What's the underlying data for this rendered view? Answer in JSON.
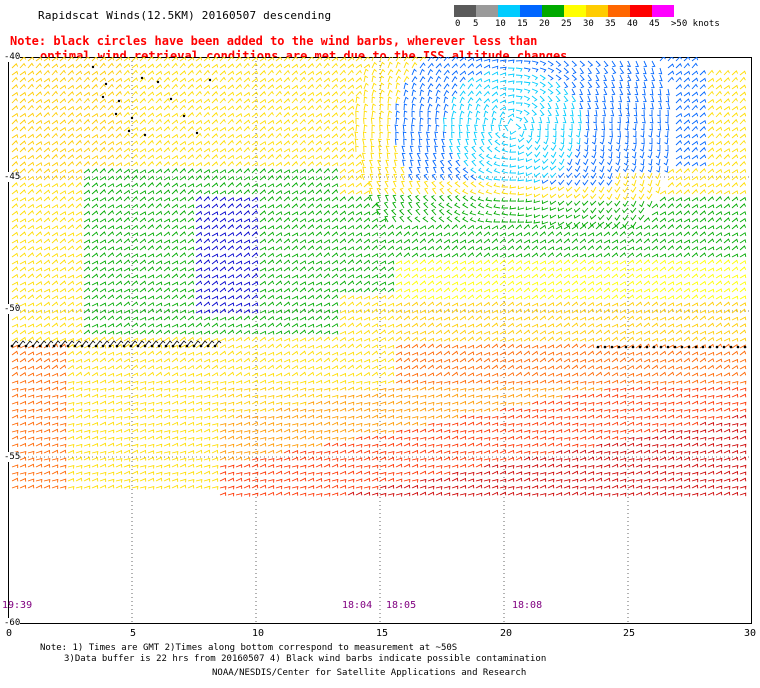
{
  "title": "Rapidscat Winds(12.5KM) 20160507 descending",
  "note_line1": "Note: black circles have been added to the wind barbs, wherever less than",
  "note_line2": "optimal wind retrieval conditions are met due to the ISS altitude changes.",
  "legend": {
    "unit": "knots",
    "labels": [
      "0",
      "5",
      "10",
      "15",
      "20",
      "25",
      "30",
      "35",
      "40",
      "45",
      ">50 knots"
    ],
    "colors": [
      "#5a5a5a",
      "#9a9a9a",
      "#00ccff",
      "#0066ff",
      "#00aa00",
      "#ffff00",
      "#ffcc00",
      "#ff6600",
      "#ff0000",
      "#ff00ff",
      "#330066"
    ]
  },
  "lat_labels": [
    "-40",
    "-45",
    "-50",
    "-55",
    "-60"
  ],
  "lon_labels": [
    "0",
    "5",
    "10",
    "15",
    "20",
    "25",
    "30"
  ],
  "time_labels": [
    "19:39",
    "18:04",
    "18:05",
    "18:08"
  ],
  "footer": {
    "line1": "Note: 1) Times are GMT 2)Times along bottom correspond to measurement at ~50S",
    "line2": "3)Data buffer is 22 hrs from 20160507 4) Black wind barbs indicate possible contamination",
    "line3": "NOAA/NESDIS/Center for Satellite Applications and Research"
  }
}
